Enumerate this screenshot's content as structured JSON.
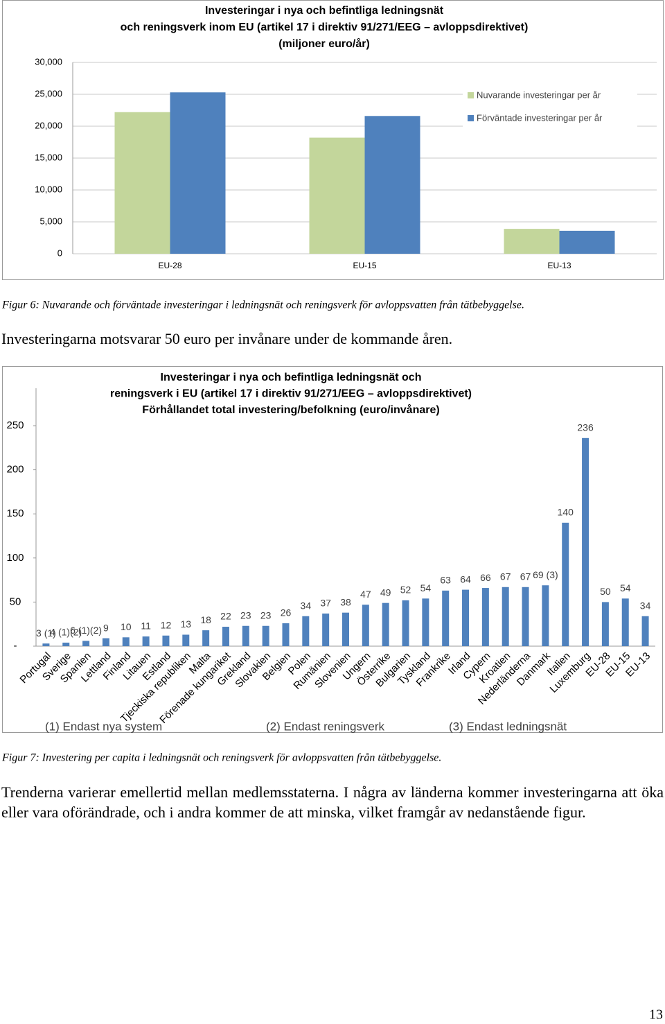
{
  "chart_data": [
    {
      "type": "bar",
      "title": [
        "Investeringar i nya och befintliga ledningsnät",
        "och reningsverk inom EU (artikel 17 i direktiv 91/271/EEG  – avloppsdirektivet)",
        "(miljoner euro/år)"
      ],
      "categories": [
        "EU-28",
        "EU-15",
        "EU-13"
      ],
      "series": [
        {
          "name": "Nuvarande investeringar per år",
          "color": "#c3d69b",
          "values": [
            22200,
            18200,
            3900
          ]
        },
        {
          "name": "Förväntade investeringar per år",
          "color": "#4f81bd",
          "values": [
            25300,
            21600,
            3600
          ]
        }
      ],
      "ylim": [
        0,
        30000
      ],
      "yticks": [
        0,
        {
          "value": 5000,
          "label": "5,000"
        },
        {
          "value": 10000,
          "label": "10,000"
        },
        {
          "value": 15000,
          "label": "15,000"
        },
        {
          "value": 20000,
          "label": "20,000"
        },
        {
          "value": 25000,
          "label": "25,000"
        },
        {
          "value": 30000,
          "label": "30,000"
        }
      ],
      "grid": true,
      "legend": "top-right"
    },
    {
      "type": "bar",
      "title": [
        "Investeringar i nya och befintliga ledningsnät och",
        "reningsverk i EU (artikel 17 i direktiv 91/271/EEG  – avloppsdirektivet)",
        "Förhållandet total investering/befolkning (euro/invånare)"
      ],
      "categories": [
        "Portugal",
        "Sverige",
        "Spanien",
        "Lettland",
        "Finland",
        "Litauen",
        "Estland",
        "Tjeckiska republiken",
        "Malta",
        "Förenade kungariket",
        "Grekland",
        "Slovakien",
        "Belgien",
        "Polen",
        "Rumänien",
        "Slovenien",
        "Ungern",
        "Österrike",
        "Bulgarien",
        "Tyskland",
        "Frankrike",
        "Irland",
        "Cypern",
        "Kroatien",
        "Nederländerna",
        "Danmark",
        "Italien",
        "Luxemburg",
        "EU-28",
        "EU-15",
        "EU-13"
      ],
      "values": [
        3,
        4,
        6,
        9,
        10,
        11,
        12,
        13,
        18,
        22,
        23,
        23,
        26,
        34,
        37,
        38,
        47,
        49,
        52,
        54,
        63,
        64,
        66,
        67,
        67,
        69,
        140,
        236,
        50,
        54,
        34
      ],
      "value_labels": [
        "3 (1)",
        "4 (1)(2)",
        "6 (1)(2)",
        "9",
        "10",
        "11",
        "12",
        "13",
        "18",
        "22",
        "23",
        "23",
        "26",
        "34",
        "37",
        "38",
        "47",
        "49",
        "52",
        "54",
        "63",
        "64",
        "66",
        "67",
        "67",
        "69 (3)",
        "140",
        "236",
        "50",
        "54",
        "34"
      ],
      "color": "#4f81bd",
      "ylim": [
        0,
        250
      ],
      "yticks": [
        {
          "value": 0,
          "label": "-"
        },
        50,
        100,
        150,
        200,
        250
      ],
      "notes": [
        "(1) Endast nya system",
        "(2) Endast reningsverk",
        "(3) Endast ledningsnät"
      ]
    }
  ],
  "captions": [
    "Figur 6: Nuvarande och förväntade investeringar i ledningsnät och reningsverk för avloppsvatten från tätbebyggelse.",
    "Figur 7: Investering per capita i ledningsnät och reningsverk för avloppsvatten från tätbebyggelse."
  ],
  "paragraphs": [
    "Investeringarna motsvarar 50 euro per invånare under de kommande åren.",
    "Trenderna varierar emellertid mellan medlemsstaterna. I några av länderna kommer investeringarna att öka eller vara oförändrade, och i andra kommer de att minska, vilket framgår av nedanstående figur."
  ],
  "page_number": "13"
}
